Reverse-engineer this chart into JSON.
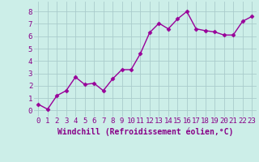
{
  "x": [
    0,
    1,
    2,
    3,
    4,
    5,
    6,
    7,
    8,
    9,
    10,
    11,
    12,
    13,
    14,
    15,
    16,
    17,
    18,
    19,
    20,
    21,
    22,
    23
  ],
  "y": [
    0.5,
    0.1,
    1.2,
    1.6,
    2.7,
    2.1,
    2.2,
    1.6,
    2.55,
    3.3,
    3.3,
    4.6,
    6.3,
    7.05,
    6.6,
    7.4,
    8.0,
    6.6,
    6.45,
    6.35,
    6.1,
    6.1,
    7.2,
    7.6
  ],
  "line_color": "#990099",
  "marker": "D",
  "markersize": 2.5,
  "linewidth": 1.0,
  "bg_color": "#cceee8",
  "grid_color": "#aacccc",
  "xlabel": "Windchill (Refroidissement éolien,°C)",
  "xlabel_color": "#880088",
  "xlabel_fontsize": 7,
  "tick_color": "#880088",
  "tick_fontsize": 6.5,
  "ytick_labels": [
    "0",
    "1",
    "2",
    "3",
    "4",
    "5",
    "6",
    "7",
    "8"
  ],
  "ylim": [
    -0.5,
    8.8
  ],
  "xlim": [
    -0.5,
    23.5
  ],
  "xtick_labels": [
    "0",
    "1",
    "2",
    "3",
    "4",
    "5",
    "6",
    "7",
    "8",
    "9",
    "10",
    "11",
    "12",
    "13",
    "14",
    "15",
    "16",
    "17",
    "18",
    "19",
    "20",
    "21",
    "22",
    "23"
  ]
}
